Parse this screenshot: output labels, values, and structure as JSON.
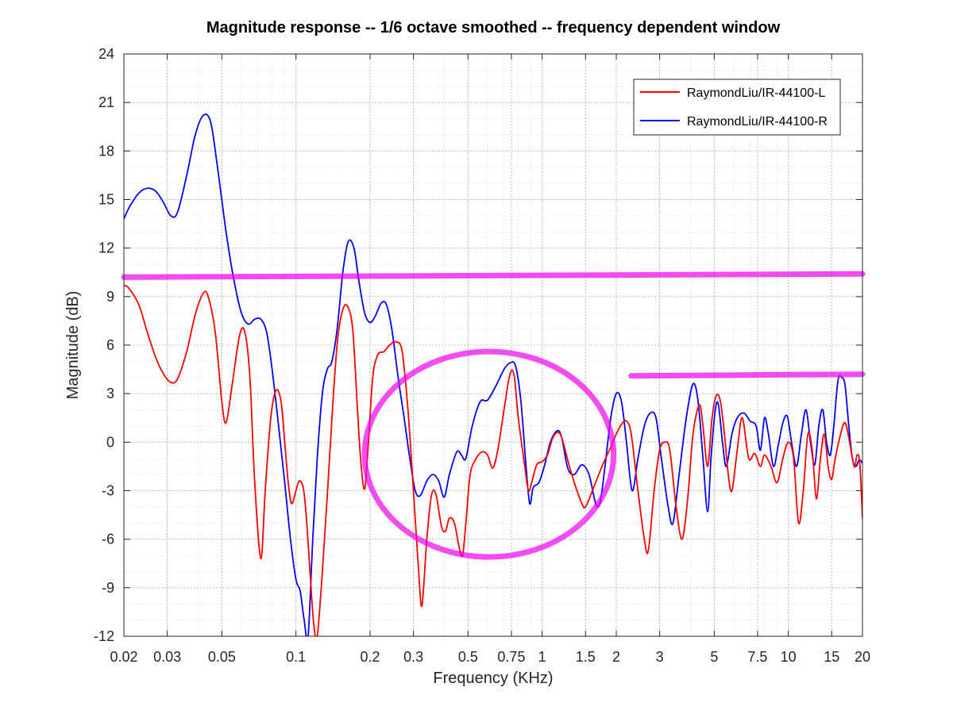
{
  "chart_data": {
    "type": "line",
    "title": "Magnitude response -- 1/6 octave smoothed -- frequency dependent window",
    "xlabel": "Frequency (KHz)",
    "ylabel": "Magnitude (dB)",
    "xscale": "log",
    "xlim": [
      0.02,
      20
    ],
    "ylim": [
      -12,
      24
    ],
    "xticks": [
      0.02,
      0.03,
      0.05,
      0.1,
      0.2,
      0.3,
      0.5,
      0.75,
      1,
      1.5,
      2,
      3,
      5,
      7.5,
      10,
      15,
      20
    ],
    "xtick_labels": [
      "0.02",
      "0.03",
      "0.05",
      "0.1",
      "0.2",
      "0.3",
      "0.5",
      "0.75",
      "1",
      "1.5",
      "2",
      "3",
      "5",
      "7.5",
      "10",
      "15",
      "20"
    ],
    "yticks": [
      24,
      21,
      18,
      15,
      12,
      9,
      6,
      3,
      0,
      -3,
      -6,
      -9,
      -12
    ],
    "ytick_labels": [
      "24",
      "21",
      "18",
      "15",
      "12",
      "9",
      "6",
      "3",
      "0",
      "-3",
      "-6",
      "-9",
      "-12"
    ],
    "grid": true,
    "minor_grid": true,
    "legend_position": "top-right",
    "series": [
      {
        "name": "RaymondLiu/IR-44100-L",
        "color": "#ff0000",
        "points": [
          [
            0.02,
            9.7
          ],
          [
            0.021,
            9.5
          ],
          [
            0.023,
            8.5
          ],
          [
            0.025,
            6.7
          ],
          [
            0.027,
            5.2
          ],
          [
            0.029,
            4.2
          ],
          [
            0.031,
            3.7
          ],
          [
            0.033,
            3.9
          ],
          [
            0.036,
            5.6
          ],
          [
            0.039,
            7.9
          ],
          [
            0.042,
            9.2
          ],
          [
            0.044,
            9.0
          ],
          [
            0.047,
            6.8
          ],
          [
            0.05,
            2.5
          ],
          [
            0.052,
            1.2
          ],
          [
            0.055,
            3.5
          ],
          [
            0.059,
            6.6
          ],
          [
            0.062,
            6.8
          ],
          [
            0.065,
            4.0
          ],
          [
            0.068,
            -2.5
          ],
          [
            0.072,
            -7.2
          ],
          [
            0.075,
            -3.0
          ],
          [
            0.079,
            1.5
          ],
          [
            0.083,
            3.2
          ],
          [
            0.087,
            2.5
          ],
          [
            0.09,
            0.0
          ],
          [
            0.093,
            -2.5
          ],
          [
            0.096,
            -3.8
          ],
          [
            0.1,
            -3.0
          ],
          [
            0.103,
            -2.4
          ],
          [
            0.107,
            -2.8
          ],
          [
            0.11,
            -4.5
          ],
          [
            0.114,
            -8.0
          ],
          [
            0.118,
            -11.2
          ],
          [
            0.122,
            -12.0
          ],
          [
            0.128,
            -8.0
          ],
          [
            0.135,
            -2.5
          ],
          [
            0.142,
            3.0
          ],
          [
            0.148,
            6.5
          ],
          [
            0.155,
            8.2
          ],
          [
            0.162,
            8.4
          ],
          [
            0.17,
            7.0
          ],
          [
            0.177,
            2.5
          ],
          [
            0.183,
            -1.0
          ],
          [
            0.19,
            -2.9
          ],
          [
            0.197,
            0.0
          ],
          [
            0.205,
            4.0
          ],
          [
            0.215,
            5.4
          ],
          [
            0.228,
            5.6
          ],
          [
            0.24,
            6.0
          ],
          [
            0.255,
            6.2
          ],
          [
            0.27,
            5.6
          ],
          [
            0.285,
            2.0
          ],
          [
            0.3,
            -3.0
          ],
          [
            0.315,
            -8.0
          ],
          [
            0.325,
            -10.1
          ],
          [
            0.34,
            -6.0
          ],
          [
            0.355,
            -3.3
          ],
          [
            0.37,
            -3.2
          ],
          [
            0.39,
            -5.2
          ],
          [
            0.405,
            -5.5
          ],
          [
            0.42,
            -4.7
          ],
          [
            0.44,
            -5.0
          ],
          [
            0.46,
            -6.5
          ],
          [
            0.475,
            -7.0
          ],
          [
            0.49,
            -5.0
          ],
          [
            0.51,
            -2.0
          ],
          [
            0.54,
            -1.0
          ],
          [
            0.57,
            -0.6
          ],
          [
            0.6,
            -0.8
          ],
          [
            0.63,
            -1.6
          ],
          [
            0.66,
            -0.5
          ],
          [
            0.7,
            2.0
          ],
          [
            0.74,
            4.2
          ],
          [
            0.77,
            4.1
          ],
          [
            0.8,
            1.5
          ],
          [
            0.85,
            -1.5
          ],
          [
            0.88,
            -3.0
          ],
          [
            0.91,
            -2.4
          ],
          [
            0.95,
            -1.4
          ],
          [
            1.0,
            -1.2
          ],
          [
            1.05,
            -0.8
          ],
          [
            1.1,
            0.2
          ],
          [
            1.15,
            0.6
          ],
          [
            1.2,
            0.3
          ],
          [
            1.28,
            -1.3
          ],
          [
            1.35,
            -2.5
          ],
          [
            1.45,
            -3.8
          ],
          [
            1.5,
            -4.0
          ],
          [
            1.6,
            -3.0
          ],
          [
            1.75,
            -1.5
          ],
          [
            1.9,
            -0.3
          ],
          [
            2.0,
            0.5
          ],
          [
            2.1,
            1.1
          ],
          [
            2.2,
            1.3
          ],
          [
            2.3,
            0.5
          ],
          [
            2.45,
            -3.0
          ],
          [
            2.6,
            -6.0
          ],
          [
            2.7,
            -6.7
          ],
          [
            2.85,
            -3.0
          ],
          [
            3.0,
            -0.5
          ],
          [
            3.15,
            0.0
          ],
          [
            3.3,
            -0.5
          ],
          [
            3.5,
            -4.0
          ],
          [
            3.7,
            -6.0
          ],
          [
            3.9,
            -3.5
          ],
          [
            4.1,
            0.5
          ],
          [
            4.35,
            2.3
          ],
          [
            4.5,
            1.0
          ],
          [
            4.7,
            -1.5
          ],
          [
            4.9,
            1.5
          ],
          [
            5.1,
            2.9
          ],
          [
            5.3,
            2.5
          ],
          [
            5.5,
            0.5
          ],
          [
            5.7,
            -2.0
          ],
          [
            5.9,
            -3.0
          ],
          [
            6.2,
            -0.5
          ],
          [
            6.5,
            1.5
          ],
          [
            6.9,
            -1.0
          ],
          [
            7.3,
            -0.7
          ],
          [
            7.7,
            -1.5
          ],
          [
            8.0,
            -0.8
          ],
          [
            8.5,
            -1.5
          ],
          [
            9.0,
            -2.5
          ],
          [
            9.5,
            -1.0
          ],
          [
            10.0,
            0.0
          ],
          [
            10.5,
            -1.0
          ],
          [
            11.0,
            -5.0
          ],
          [
            11.5,
            -3.0
          ],
          [
            12.0,
            0.5
          ],
          [
            12.5,
            -0.5
          ],
          [
            13.0,
            -3.5
          ],
          [
            13.5,
            -1.0
          ],
          [
            14.0,
            0.5
          ],
          [
            14.5,
            -1.5
          ],
          [
            15.0,
            -2.3
          ],
          [
            15.5,
            -1.0
          ],
          [
            16.5,
            0.8
          ],
          [
            17.0,
            1.2
          ],
          [
            17.5,
            0.5
          ],
          [
            18.5,
            -1.5
          ],
          [
            19.0,
            -0.8
          ],
          [
            19.5,
            -1.3
          ],
          [
            20.0,
            -4.7
          ]
        ]
      },
      {
        "name": "RaymondLiu/IR-44100-R",
        "color": "#0000ff",
        "points": [
          [
            0.02,
            13.8
          ],
          [
            0.021,
            14.5
          ],
          [
            0.023,
            15.4
          ],
          [
            0.025,
            15.7
          ],
          [
            0.027,
            15.5
          ],
          [
            0.029,
            14.8
          ],
          [
            0.031,
            14.0
          ],
          [
            0.033,
            14.2
          ],
          [
            0.036,
            16.5
          ],
          [
            0.039,
            19.0
          ],
          [
            0.042,
            20.2
          ],
          [
            0.045,
            19.8
          ],
          [
            0.048,
            17.0
          ],
          [
            0.052,
            13.0
          ],
          [
            0.056,
            10.0
          ],
          [
            0.06,
            8.0
          ],
          [
            0.064,
            7.3
          ],
          [
            0.068,
            7.6
          ],
          [
            0.072,
            7.6
          ],
          [
            0.076,
            6.8
          ],
          [
            0.08,
            4.5
          ],
          [
            0.085,
            1.0
          ],
          [
            0.09,
            -2.5
          ],
          [
            0.095,
            -6.0
          ],
          [
            0.1,
            -8.5
          ],
          [
            0.104,
            -9.2
          ],
          [
            0.108,
            -11.0
          ],
          [
            0.112,
            -12.0
          ],
          [
            0.117,
            -6.0
          ],
          [
            0.122,
            -1.0
          ],
          [
            0.128,
            3.0
          ],
          [
            0.134,
            4.5
          ],
          [
            0.14,
            5.0
          ],
          [
            0.147,
            7.0
          ],
          [
            0.155,
            10.5
          ],
          [
            0.163,
            12.4
          ],
          [
            0.172,
            12.0
          ],
          [
            0.18,
            10.0
          ],
          [
            0.19,
            8.0
          ],
          [
            0.2,
            7.4
          ],
          [
            0.21,
            7.8
          ],
          [
            0.222,
            8.6
          ],
          [
            0.233,
            8.5
          ],
          [
            0.245,
            7.0
          ],
          [
            0.26,
            4.0
          ],
          [
            0.275,
            1.5
          ],
          [
            0.29,
            -1.0
          ],
          [
            0.305,
            -3.0
          ],
          [
            0.32,
            -3.3
          ],
          [
            0.34,
            -2.4
          ],
          [
            0.36,
            -2.0
          ],
          [
            0.38,
            -2.4
          ],
          [
            0.4,
            -3.4
          ],
          [
            0.42,
            -2.0
          ],
          [
            0.45,
            -0.6
          ],
          [
            0.47,
            -0.8
          ],
          [
            0.49,
            -1.0
          ],
          [
            0.52,
            1.0
          ],
          [
            0.56,
            2.5
          ],
          [
            0.6,
            2.6
          ],
          [
            0.65,
            3.5
          ],
          [
            0.7,
            4.5
          ],
          [
            0.74,
            4.9
          ],
          [
            0.78,
            4.7
          ],
          [
            0.82,
            2.5
          ],
          [
            0.86,
            -1.5
          ],
          [
            0.89,
            -3.8
          ],
          [
            0.92,
            -2.8
          ],
          [
            0.97,
            -2.5
          ],
          [
            1.02,
            -1.5
          ],
          [
            1.08,
            0.0
          ],
          [
            1.15,
            0.7
          ],
          [
            1.2,
            0.3
          ],
          [
            1.27,
            -1.6
          ],
          [
            1.35,
            -2.0
          ],
          [
            1.45,
            -1.4
          ],
          [
            1.55,
            -2.0
          ],
          [
            1.65,
            -3.8
          ],
          [
            1.72,
            -3.7
          ],
          [
            1.8,
            -1.5
          ],
          [
            1.9,
            1.5
          ],
          [
            2.0,
            3.0
          ],
          [
            2.1,
            2.5
          ],
          [
            2.2,
            0.0
          ],
          [
            2.32,
            -3.0
          ],
          [
            2.45,
            -1.0
          ],
          [
            2.6,
            1.0
          ],
          [
            2.75,
            1.8
          ],
          [
            2.9,
            1.5
          ],
          [
            3.05,
            -1.0
          ],
          [
            3.25,
            -4.0
          ],
          [
            3.4,
            -5.0
          ],
          [
            3.6,
            -2.0
          ],
          [
            3.85,
            1.5
          ],
          [
            4.1,
            3.6
          ],
          [
            4.3,
            2.5
          ],
          [
            4.5,
            -1.0
          ],
          [
            4.7,
            -4.3
          ],
          [
            4.85,
            -1.0
          ],
          [
            5.05,
            2.0
          ],
          [
            5.2,
            2.3
          ],
          [
            5.4,
            0.0
          ],
          [
            5.6,
            -1.5
          ],
          [
            5.9,
            0.5
          ],
          [
            6.2,
            1.5
          ],
          [
            6.6,
            1.8
          ],
          [
            7.0,
            1.3
          ],
          [
            7.4,
            1.0
          ],
          [
            7.7,
            -0.5
          ],
          [
            8.0,
            1.5
          ],
          [
            8.3,
            0.5
          ],
          [
            8.7,
            -1.5
          ],
          [
            9.1,
            -0.2
          ],
          [
            9.5,
            1.2
          ],
          [
            9.9,
            1.6
          ],
          [
            10.3,
            0.0
          ],
          [
            10.8,
            -1.5
          ],
          [
            11.3,
            0.5
          ],
          [
            11.8,
            2.0
          ],
          [
            12.3,
            0.0
          ],
          [
            12.8,
            -1.4
          ],
          [
            13.3,
            1.0
          ],
          [
            13.8,
            2.0
          ],
          [
            14.3,
            0.0
          ],
          [
            14.8,
            -0.8
          ],
          [
            15.3,
            1.0
          ],
          [
            15.9,
            3.8
          ],
          [
            16.5,
            4.0
          ],
          [
            17.0,
            3.5
          ],
          [
            17.6,
            1.0
          ],
          [
            18.2,
            -1.0
          ],
          [
            18.8,
            -1.5
          ],
          [
            19.4,
            -1.1
          ],
          [
            20.0,
            -1.3
          ]
        ]
      }
    ],
    "annotations": [
      {
        "type": "hline",
        "color": "#ee00ee",
        "x": [
          0.02,
          20
        ],
        "y": [
          10.2,
          10.4
        ]
      },
      {
        "type": "hline",
        "color": "#ee00ee",
        "x": [
          2.3,
          20
        ],
        "y": [
          4.1,
          4.2
        ]
      },
      {
        "type": "ellipse",
        "color": "#ee00ee",
        "x": [
          0.19,
          1.95
        ],
        "y": [
          -7.1,
          5.6
        ]
      }
    ]
  }
}
